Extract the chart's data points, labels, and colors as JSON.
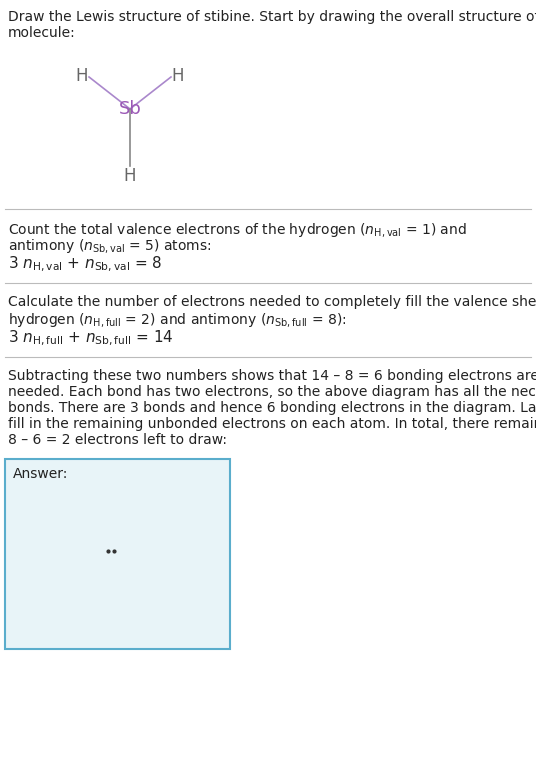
{
  "sb_color": "#9b59b6",
  "h_color": "#666666",
  "bond_color_top": "#a0a0b8",
  "bond_color_bottom": "#666666",
  "background_color": "#ffffff",
  "answer_bg_color": "#e8f4f8",
  "answer_border_color": "#5aadcc",
  "answer_label": "Answer:",
  "title_line1": "Draw the Lewis structure of stibine. Start by drawing the overall structure of the",
  "title_line2": "molecule:",
  "s1_line1": "Count the total valence electrons of the hydrogen ($n_{\\mathrm{H,val}}$ = 1) and",
  "s1_line2": "antimony ($n_{\\mathrm{Sb,val}}$ = 5) atoms:",
  "s1_eq": "3 $n_{\\mathrm{H,val}}$ + $n_{\\mathrm{Sb,val}}$ = 8",
  "s2_line1": "Calculate the number of electrons needed to completely fill the valence shells for",
  "s2_line2": "hydrogen ($n_{\\mathrm{H,full}}$ = 2) and antimony ($n_{\\mathrm{Sb,full}}$ = 8):",
  "s2_eq": "3 $n_{\\mathrm{H,full}}$ + $n_{\\mathrm{Sb,full}}$ = 14",
  "s3_lines": [
    "Subtracting these two numbers shows that 14 – 8 = 6 bonding electrons are",
    "needed. Each bond has two electrons, so the above diagram has all the necessary",
    "bonds. There are 3 bonds and hence 6 bonding electrons in the diagram. Lastly,",
    "fill in the remaining unbonded electrons on each atom. In total, there remain",
    "8 – 6 = 2 electrons left to draw:"
  ]
}
